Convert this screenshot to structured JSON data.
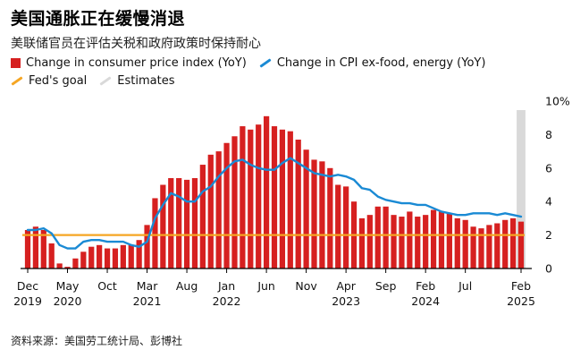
{
  "title": "美国通胀正在缓慢消退",
  "subtitle": "美联储官员在评估关税和政府政策时保持耐心",
  "source": "资料来源：美国劳工统计局、彭博社",
  "legend": {
    "cpi": "Change in consumer price index (YoY)",
    "core": "Change in CPI ex-food, energy (YoY)",
    "goal": "Fed's goal",
    "estimates": "Estimates"
  },
  "colors": {
    "bar": "#d62020",
    "line": "#1a8ad4",
    "goal": "#f5a623",
    "estimate": "#d9d9d9",
    "axis": "#000000"
  },
  "chart_data": {
    "type": "bar",
    "title": "美国通胀正在缓慢消退",
    "subtitle": "美联储官员在评估关税和政府政策时保持耐心",
    "ylabel": "%",
    "ylim": [
      0,
      10
    ],
    "yticks": [
      "0",
      "2",
      "4",
      "6",
      "8",
      "10%"
    ],
    "x_ticks": [
      {
        "month": 0,
        "line1": "Dec",
        "line2": "2019"
      },
      {
        "month": 5,
        "line1": "May",
        "line2": "2020"
      },
      {
        "month": 10,
        "line1": "Oct",
        "line2": ""
      },
      {
        "month": 15,
        "line1": "Mar",
        "line2": "2021"
      },
      {
        "month": 20,
        "line1": "Aug",
        "line2": ""
      },
      {
        "month": 25,
        "line1": "Jan",
        "line2": "2022"
      },
      {
        "month": 30,
        "line1": "Jun",
        "line2": ""
      },
      {
        "month": 35,
        "line1": "Nov",
        "line2": ""
      },
      {
        "month": 40,
        "line1": "Apr",
        "line2": "2023"
      },
      {
        "month": 45,
        "line1": "Sep",
        "line2": ""
      },
      {
        "month": 50,
        "line1": "Feb",
        "line2": "2024"
      },
      {
        "month": 55,
        "line1": "Jul",
        "line2": ""
      },
      {
        "month": 62,
        "line1": "Feb",
        "line2": "2025"
      }
    ],
    "series": [
      {
        "name": "Change in consumer price index (YoY)",
        "kind": "bar",
        "values": [
          2.3,
          2.5,
          2.3,
          1.5,
          0.3,
          0.1,
          0.6,
          1.0,
          1.3,
          1.4,
          1.2,
          1.2,
          1.4,
          1.4,
          1.7,
          2.6,
          4.2,
          5.0,
          5.4,
          5.4,
          5.3,
          5.4,
          6.2,
          6.8,
          7.0,
          7.5,
          7.9,
          8.5,
          8.3,
          8.6,
          9.1,
          8.5,
          8.3,
          8.2,
          7.7,
          7.1,
          6.5,
          6.4,
          6.0,
          5.0,
          4.9,
          4.0,
          3.0,
          3.2,
          3.7,
          3.7,
          3.2,
          3.1,
          3.4,
          3.1,
          3.2,
          3.5,
          3.4,
          3.3,
          3.0,
          2.9,
          2.5,
          2.4,
          2.6,
          2.7,
          2.9,
          3.0,
          2.8
        ]
      },
      {
        "name": "Change in CPI ex-food, energy (YoY)",
        "kind": "line",
        "values": [
          2.3,
          2.3,
          2.4,
          2.1,
          1.4,
          1.2,
          1.2,
          1.6,
          1.7,
          1.7,
          1.6,
          1.6,
          1.6,
          1.4,
          1.3,
          1.6,
          3.0,
          3.8,
          4.5,
          4.3,
          4.0,
          4.0,
          4.6,
          4.9,
          5.5,
          6.0,
          6.4,
          6.5,
          6.2,
          6.0,
          5.9,
          5.9,
          6.3,
          6.6,
          6.3,
          6.0,
          5.7,
          5.6,
          5.5,
          5.6,
          5.5,
          5.3,
          4.8,
          4.7,
          4.3,
          4.1,
          4.0,
          3.9,
          3.9,
          3.8,
          3.8,
          3.6,
          3.4,
          3.3,
          3.2,
          3.2,
          3.3,
          3.3,
          3.3,
          3.2,
          3.3,
          3.2,
          3.1
        ]
      },
      {
        "name": "Fed's goal",
        "kind": "reference",
        "value": 2
      },
      {
        "name": "Estimates",
        "kind": "shaded-band",
        "months": [
          62,
          62
        ]
      }
    ]
  }
}
